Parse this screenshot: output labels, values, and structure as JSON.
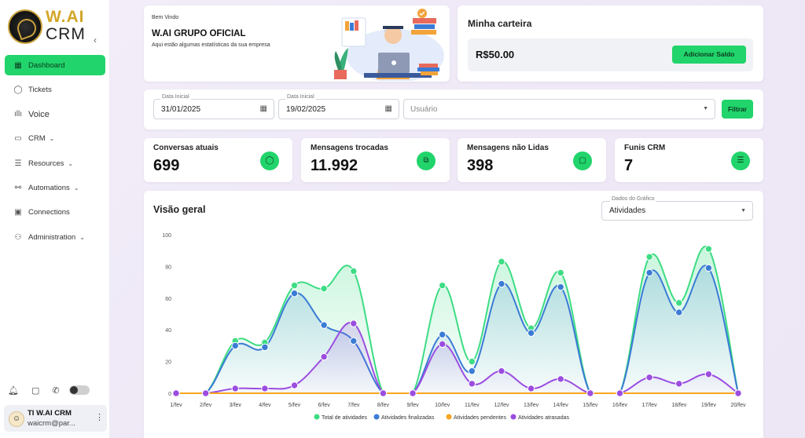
{
  "brand": {
    "logo_top": "W.AI",
    "logo_bottom": "CRM"
  },
  "sidebar": {
    "items": [
      {
        "label": "Dashboard",
        "icon": "grid-icon",
        "glyph": "▦",
        "active": true,
        "caret": false
      },
      {
        "label": "Tickets",
        "icon": "chat-bubble-icon",
        "glyph": "◯",
        "active": false,
        "caret": false
      },
      {
        "label": "Voice",
        "icon": "waveform-icon",
        "glyph": "ıllı",
        "active": false,
        "caret": false
      },
      {
        "label": "CRM",
        "icon": "id-card-icon",
        "glyph": "▭",
        "active": false,
        "caret": true
      },
      {
        "label": "Resources",
        "icon": "stack-icon",
        "glyph": "☰",
        "active": false,
        "caret": true
      },
      {
        "label": "Automations",
        "icon": "nodes-icon",
        "glyph": "⚯",
        "active": false,
        "caret": true
      },
      {
        "label": "Connections",
        "icon": "devices-icon",
        "glyph": "▣",
        "active": false,
        "caret": false
      },
      {
        "label": "Administration",
        "icon": "user-gear-icon",
        "glyph": "⚇",
        "active": false,
        "caret": true
      }
    ]
  },
  "user": {
    "name": "TI W.AI CRM",
    "email": "waicrm@par..."
  },
  "welcome": {
    "greeting": "Bem Vindo",
    "title": "W.AI GRUPO OFICIAL",
    "subtitle": "Aqui estão algumas estatísticas da sua empresa"
  },
  "wallet": {
    "title": "Minha carteira",
    "balance": "R$50.00",
    "button": "Adicionar Saldo"
  },
  "filters": {
    "start_label": "Data Inicial",
    "start_value": "31/01/2025",
    "end_label": "Data Inicial",
    "end_value": "19/02/2025",
    "user_placeholder": "Usuário",
    "button": "Filtrar"
  },
  "stats": [
    {
      "label": "Conversas atuais",
      "value": "699",
      "icon": "chat-icon"
    },
    {
      "label": "Mensagens trocadas",
      "value": "11.992",
      "icon": "messages-icon"
    },
    {
      "label": "Mensagens não Lidas",
      "value": "398",
      "icon": "unread-message-icon"
    },
    {
      "label": "Funis CRM",
      "value": "7",
      "icon": "filter-icon"
    }
  ],
  "overview": {
    "title": "Visão geral",
    "select_label": "Dados do Gráfico",
    "select_value": "Atividades"
  },
  "chart_data": {
    "type": "area",
    "x": [
      "1/fev",
      "2/fev",
      "3/fev",
      "4/fev",
      "5/fev",
      "6/fev",
      "7/fev",
      "8/fev",
      "9/fev",
      "10/fev",
      "11/fev",
      "12/fev",
      "13/fev",
      "14/fev",
      "15/fev",
      "16/fev",
      "17/fev",
      "18/fev",
      "19/fev",
      "20/fev"
    ],
    "ylim": [
      0,
      100
    ],
    "yticks": [
      0,
      20,
      40,
      60,
      80,
      100
    ],
    "legend_position": "bottom",
    "series": [
      {
        "name": "Total de atividades",
        "color": "#3ddc84",
        "values": [
          0,
          0,
          33,
          32,
          68,
          66,
          77,
          0,
          0,
          68,
          20,
          83,
          41,
          76,
          0,
          0,
          86,
          57,
          91,
          0
        ]
      },
      {
        "name": "Atividades finalizadas",
        "color": "#3a7bd5",
        "values": [
          0,
          0,
          30,
          29,
          63,
          43,
          33,
          0,
          0,
          37,
          14,
          69,
          38,
          67,
          0,
          0,
          76,
          51,
          79,
          0
        ]
      },
      {
        "name": "Atividades pendentes",
        "color": "#f5a623",
        "values": [
          0,
          0,
          0,
          0,
          0,
          0,
          0,
          0,
          0,
          0,
          0,
          0,
          0,
          0,
          0,
          0,
          0,
          0,
          0,
          0
        ]
      },
      {
        "name": "Atividades atrasadas",
        "color": "#9b4de0",
        "values": [
          0,
          0,
          3,
          3,
          5,
          23,
          44,
          0,
          0,
          31,
          6,
          14,
          3,
          9,
          0,
          0,
          10,
          6,
          12,
          0
        ]
      }
    ]
  }
}
